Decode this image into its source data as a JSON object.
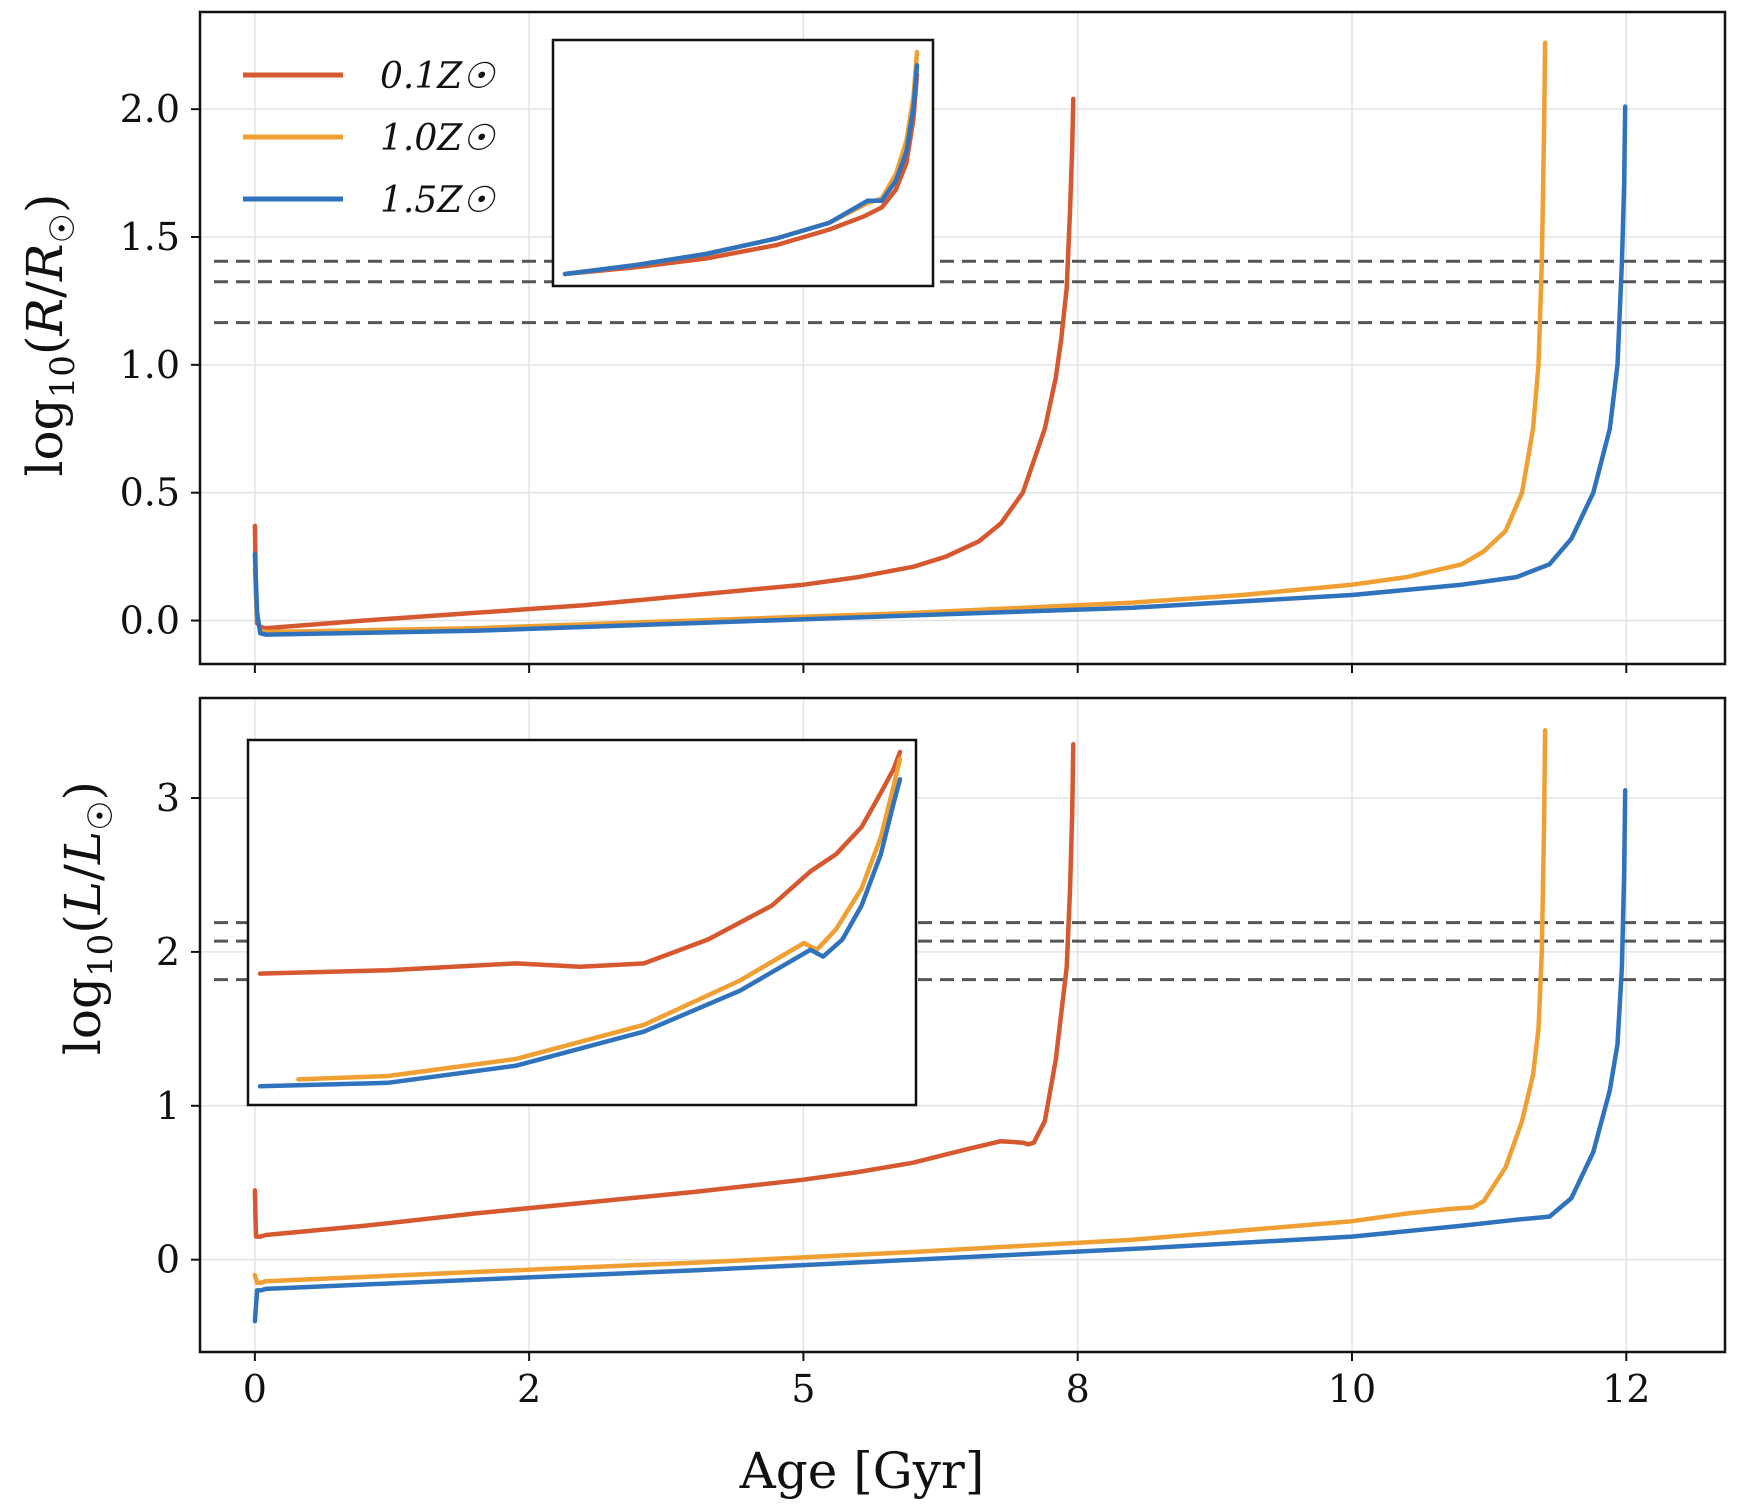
{
  "chart_data": [
    {
      "type": "line",
      "panel": "top",
      "ylabel": "log10(R/R☉)",
      "xlabel": "",
      "xlim": [
        -0.5,
        13.4
      ],
      "ylim": [
        -0.17,
        2.38
      ],
      "xticks": [
        0,
        2.5,
        5,
        7.5,
        10,
        12.5
      ],
      "xtick_labels": [
        "",
        "",
        "",
        "",
        "",
        ""
      ],
      "yticks": [
        0.0,
        0.5,
        1.0,
        1.5,
        2.0
      ],
      "ytick_labels": [
        "0.0",
        "0.5",
        "1.0",
        "1.5",
        "2.0"
      ],
      "grid": true,
      "legend": "top-left",
      "hlines": [
        1.405,
        1.325,
        1.165
      ],
      "series": [
        {
          "name": "0.1Z☉",
          "color": "#d6582f",
          "x": [
            0,
            0.005,
            0.01,
            0.02,
            0.05,
            0.1,
            1,
            2,
            3,
            4,
            5,
            5.5,
            6,
            6.3,
            6.6,
            6.8,
            7,
            7.2,
            7.3,
            7.35,
            7.4,
            7.43,
            7.45,
            7.46
          ],
          "y": [
            0.37,
            0.25,
            0.1,
            -0.01,
            -0.025,
            -0.03,
            0.0,
            0.03,
            0.06,
            0.1,
            0.14,
            0.17,
            0.21,
            0.25,
            0.31,
            0.38,
            0.5,
            0.75,
            0.95,
            1.1,
            1.3,
            1.6,
            1.85,
            2.04
          ]
        },
        {
          "name": "1.0Z☉",
          "color": "#f0a033",
          "x": [
            0,
            0.02,
            0.05,
            0.1,
            2,
            4,
            6,
            8,
            9,
            10,
            10.5,
            11,
            11.2,
            11.4,
            11.55,
            11.65,
            11.7,
            11.73,
            11.75,
            11.76
          ],
          "y": [
            0.2,
            0.02,
            -0.04,
            -0.045,
            -0.03,
            0.0,
            0.03,
            0.07,
            0.1,
            0.14,
            0.17,
            0.22,
            0.27,
            0.35,
            0.5,
            0.75,
            1.0,
            1.4,
            1.9,
            2.26
          ]
        },
        {
          "name": "1.5Z☉",
          "color": "#2f72bd",
          "x": [
            0,
            0.02,
            0.05,
            0.1,
            2,
            4,
            6,
            8,
            10,
            11,
            11.5,
            11.8,
            12,
            12.2,
            12.35,
            12.42,
            12.46,
            12.48,
            12.49
          ],
          "y": [
            0.26,
            0.03,
            -0.05,
            -0.055,
            -0.04,
            -0.01,
            0.02,
            0.05,
            0.1,
            0.14,
            0.17,
            0.22,
            0.32,
            0.5,
            0.75,
            1.0,
            1.4,
            1.7,
            2.01
          ]
        }
      ]
    },
    {
      "type": "line",
      "panel": "bottom",
      "ylabel": "log10(L/L☉)",
      "xlabel": "Age [Gyr]",
      "xlim": [
        -0.5,
        13.4
      ],
      "ylim": [
        -0.6,
        3.65
      ],
      "xticks": [
        0,
        2.5,
        5,
        7.5,
        10,
        12.5
      ],
      "xtick_labels": [
        "0",
        "2",
        "5",
        "8",
        "10",
        "12"
      ],
      "yticks": [
        0,
        1,
        2,
        3
      ],
      "ytick_labels": [
        "0",
        "1",
        "2",
        "3"
      ],
      "grid": true,
      "hlines": [
        2.19,
        2.07,
        1.82
      ],
      "series": [
        {
          "name": "0.1Z☉",
          "color": "#d6582f",
          "x": [
            0,
            0.005,
            0.01,
            0.02,
            0.05,
            0.1,
            1,
            2,
            3,
            4,
            5,
            5.5,
            6,
            6.5,
            6.8,
            7,
            7.05,
            7.1,
            7.2,
            7.3,
            7.35,
            7.4,
            7.43,
            7.45,
            7.46
          ],
          "y": [
            0.45,
            0.3,
            0.15,
            0.15,
            0.15,
            0.16,
            0.22,
            0.3,
            0.37,
            0.44,
            0.52,
            0.57,
            0.63,
            0.72,
            0.77,
            0.76,
            0.75,
            0.76,
            0.9,
            1.3,
            1.6,
            1.9,
            2.4,
            2.9,
            3.35
          ]
        },
        {
          "name": "1.0Z☉",
          "color": "#f0a033",
          "x": [
            0,
            0.02,
            0.05,
            0.1,
            2,
            4,
            6,
            8,
            10,
            10.5,
            10.9,
            11.1,
            11.2,
            11.4,
            11.55,
            11.65,
            11.7,
            11.73,
            11.75,
            11.76
          ],
          "y": [
            -0.1,
            -0.15,
            -0.15,
            -0.14,
            -0.08,
            -0.02,
            0.05,
            0.13,
            0.25,
            0.3,
            0.33,
            0.34,
            0.38,
            0.6,
            0.9,
            1.2,
            1.5,
            2.0,
            2.8,
            3.44
          ]
        },
        {
          "name": "1.5Z☉",
          "color": "#2f72bd",
          "x": [
            0,
            0.02,
            0.05,
            0.1,
            2,
            4,
            6,
            8,
            10,
            11,
            11.5,
            11.8,
            12,
            12.2,
            12.35,
            12.42,
            12.46,
            12.48,
            12.49
          ],
          "y": [
            -0.4,
            -0.2,
            -0.2,
            -0.19,
            -0.13,
            -0.07,
            0.0,
            0.07,
            0.15,
            0.22,
            0.26,
            0.28,
            0.4,
            0.7,
            1.1,
            1.4,
            1.9,
            2.5,
            3.05
          ]
        }
      ]
    }
  ],
  "insets": [
    {
      "panel": "top",
      "series": [
        {
          "color": "#d6582f",
          "x": [
            0,
            0.2,
            0.4,
            0.6,
            0.75,
            0.85,
            0.9,
            0.94,
            0.97,
            0.99,
            1.0
          ],
          "y": [
            0,
            0.03,
            0.07,
            0.13,
            0.2,
            0.26,
            0.3,
            0.38,
            0.5,
            0.7,
            0.9
          ]
        },
        {
          "color": "#f0a033",
          "x": [
            0,
            0.2,
            0.4,
            0.6,
            0.75,
            0.86,
            0.9,
            0.94,
            0.97,
            0.99,
            1.0
          ],
          "y": [
            0,
            0.04,
            0.09,
            0.16,
            0.23,
            0.32,
            0.34,
            0.45,
            0.6,
            0.8,
            1.0
          ]
        },
        {
          "color": "#2f72bd",
          "x": [
            0,
            0.2,
            0.4,
            0.6,
            0.75,
            0.86,
            0.9,
            0.94,
            0.97,
            0.99,
            1.0
          ],
          "y": [
            0,
            0.04,
            0.09,
            0.16,
            0.23,
            0.33,
            0.33,
            0.42,
            0.55,
            0.75,
            0.94
          ]
        }
      ]
    },
    {
      "panel": "bottom",
      "series": [
        {
          "color": "#d6582f",
          "x": [
            0,
            0.2,
            0.4,
            0.5,
            0.6,
            0.7,
            0.8,
            0.86,
            0.9,
            0.94,
            0.97,
            0.99,
            1.0
          ],
          "y": [
            0.35,
            0.36,
            0.38,
            0.37,
            0.38,
            0.45,
            0.55,
            0.65,
            0.7,
            0.78,
            0.88,
            0.95,
            1.0
          ]
        },
        {
          "color": "#f0a033",
          "x": [
            0.06,
            0.2,
            0.4,
            0.6,
            0.75,
            0.85,
            0.87,
            0.9,
            0.94,
            0.97,
            0.99,
            1.0
          ],
          "y": [
            0.04,
            0.05,
            0.1,
            0.2,
            0.33,
            0.44,
            0.42,
            0.48,
            0.6,
            0.75,
            0.9,
            0.98
          ]
        },
        {
          "color": "#2f72bd",
          "x": [
            0,
            0.2,
            0.4,
            0.6,
            0.75,
            0.86,
            0.88,
            0.91,
            0.94,
            0.97,
            0.99,
            1.0
          ],
          "y": [
            0.02,
            0.03,
            0.08,
            0.18,
            0.3,
            0.42,
            0.4,
            0.45,
            0.55,
            0.7,
            0.85,
            0.92
          ]
        }
      ]
    }
  ]
}
